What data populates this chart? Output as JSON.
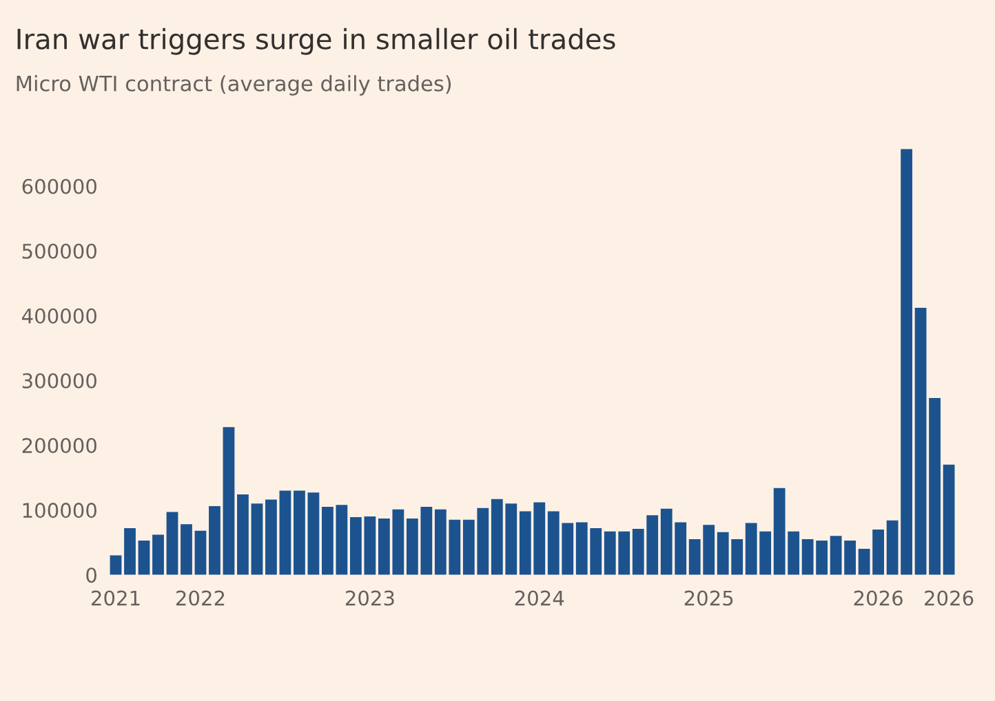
{
  "chart_data": {
    "type": "bar",
    "title": "Iran war triggers surge in smaller oil trades",
    "subtitle": "Micro WTI contract (average daily trades)",
    "categories": [
      "2021",
      null,
      null,
      null,
      null,
      null,
      "2022",
      null,
      null,
      null,
      null,
      null,
      null,
      null,
      null,
      null,
      null,
      null,
      "2023",
      null,
      null,
      null,
      null,
      null,
      null,
      null,
      null,
      null,
      null,
      null,
      "2024",
      null,
      null,
      null,
      null,
      null,
      null,
      null,
      null,
      null,
      null,
      null,
      "2025",
      null,
      null,
      null,
      null,
      null,
      null,
      null,
      null,
      null,
      null,
      null,
      "2026",
      null,
      null,
      null,
      null,
      "2026"
    ],
    "values": [
      30000,
      72000,
      53000,
      62000,
      97000,
      78000,
      68000,
      106000,
      228000,
      124000,
      110000,
      116000,
      130000,
      130000,
      127000,
      105000,
      108000,
      89000,
      90000,
      87000,
      101000,
      87000,
      105000,
      101000,
      85000,
      85000,
      103000,
      117000,
      110000,
      98000,
      112000,
      98000,
      80000,
      81000,
      72000,
      67000,
      67000,
      71000,
      92000,
      102000,
      81000,
      55000,
      77000,
      66000,
      55000,
      80000,
      67000,
      134000,
      67000,
      55000,
      53000,
      60000,
      53000,
      40000,
      70000,
      84000,
      657000,
      412000,
      273000,
      170000
    ],
    "color": "#1c538f",
    "ylim": [
      0,
      660000
    ],
    "yticks": [
      0,
      100000,
      200000,
      300000,
      400000,
      500000,
      600000
    ],
    "grid": false
  }
}
